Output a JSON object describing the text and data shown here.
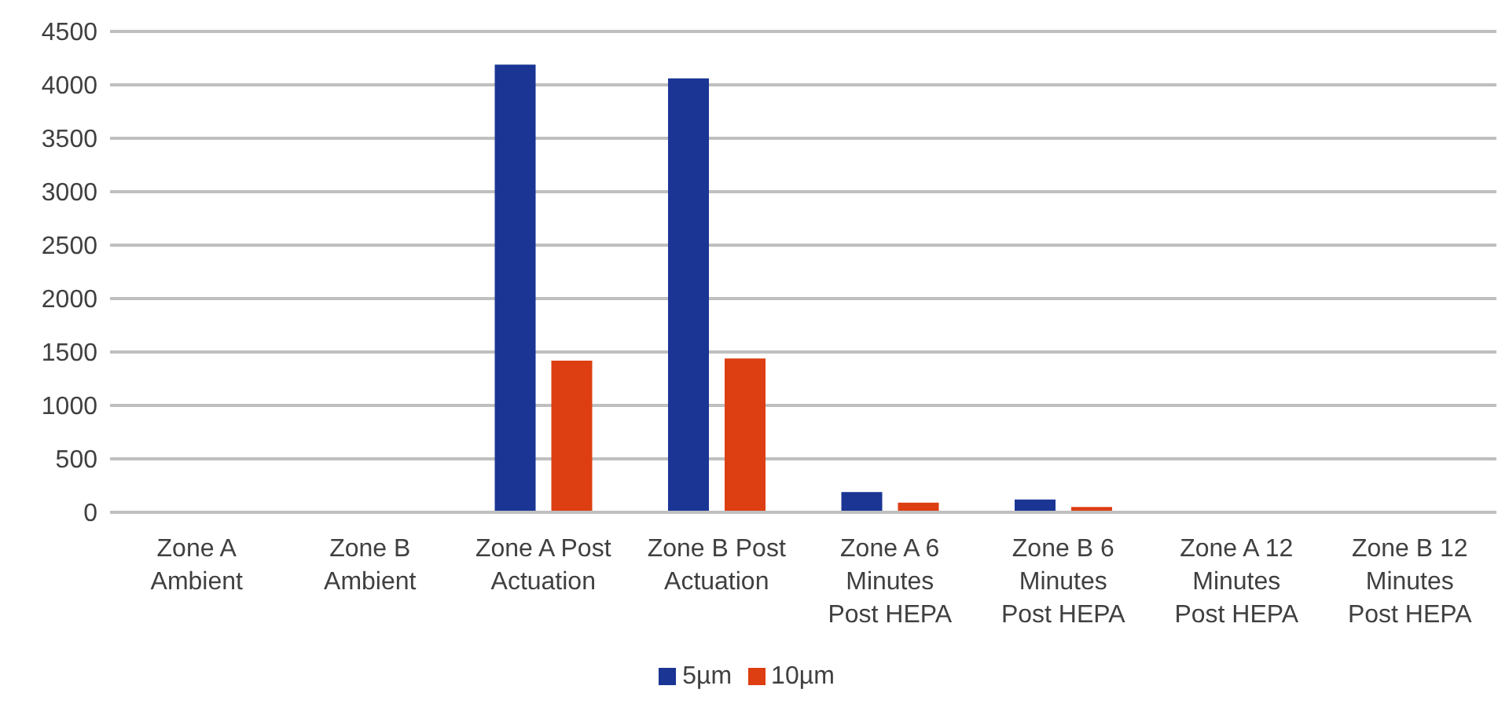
{
  "chart_data": {
    "type": "bar",
    "categories": [
      "Zone A Ambient",
      "Zone B Ambient",
      "Zone A Post Actuation",
      "Zone B Post Actuation",
      "Zone A 6 Minutes Post HEPA",
      "Zone B 6 Minutes Post HEPA",
      "Zone A 12 Minutes Post HEPA",
      "Zone B 12 Minutes Post HEPA"
    ],
    "series": [
      {
        "name": "5µm",
        "color": "#1a3594",
        "values": [
          0,
          0,
          4190,
          4060,
          190,
          120,
          0,
          0
        ]
      },
      {
        "name": "10µm",
        "color": "#dd3e12",
        "values": [
          0,
          0,
          1420,
          1440,
          90,
          50,
          0,
          0
        ]
      }
    ],
    "ylim": [
      0,
      4500
    ],
    "yticks": [
      0,
      500,
      1000,
      1500,
      2000,
      2500,
      3000,
      3500,
      4000,
      4500
    ],
    "grid": "y",
    "legend": "bottom"
  }
}
